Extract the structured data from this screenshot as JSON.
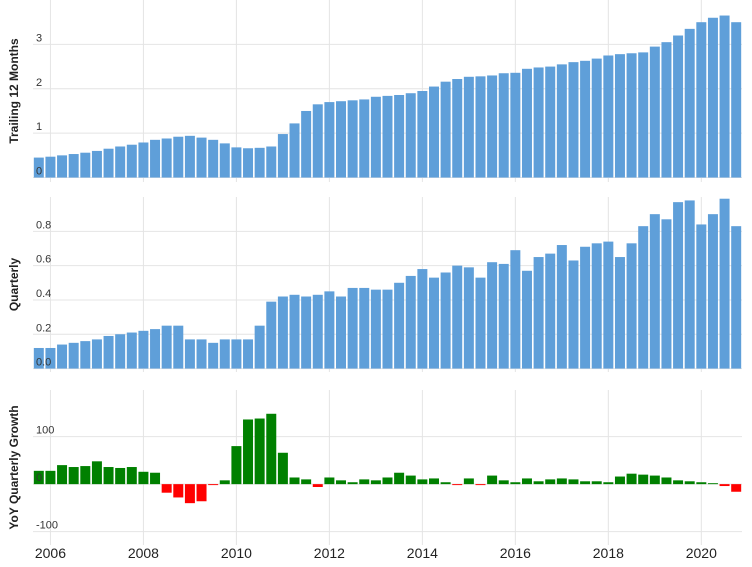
{
  "chart_data": [
    {
      "type": "bar",
      "ylabel": "Trailing 12 Months",
      "color": "#5f9fd9",
      "x": [
        2005.75,
        2006,
        2006.25,
        2006.5,
        2006.75,
        2007,
        2007.25,
        2007.5,
        2007.75,
        2008,
        2008.25,
        2008.5,
        2008.75,
        2009,
        2009.25,
        2009.5,
        2009.75,
        2010,
        2010.25,
        2010.5,
        2010.75,
        2011,
        2011.25,
        2011.5,
        2011.75,
        2012,
        2012.25,
        2012.5,
        2012.75,
        2013,
        2013.25,
        2013.5,
        2013.75,
        2014,
        2014.25,
        2014.5,
        2014.75,
        2015,
        2015.25,
        2015.5,
        2015.75,
        2016,
        2016.25,
        2016.5,
        2016.75,
        2017,
        2017.25,
        2017.5,
        2017.75,
        2018,
        2018.25,
        2018.5,
        2018.75,
        2019,
        2019.25,
        2019.5,
        2019.75,
        2020,
        2020.25,
        2020.5,
        2020.75
      ],
      "values": [
        0.45,
        0.47,
        0.5,
        0.53,
        0.56,
        0.6,
        0.65,
        0.7,
        0.74,
        0.79,
        0.85,
        0.88,
        0.92,
        0.94,
        0.9,
        0.85,
        0.77,
        0.68,
        0.66,
        0.67,
        0.7,
        0.98,
        1.22,
        1.5,
        1.65,
        1.7,
        1.72,
        1.74,
        1.76,
        1.82,
        1.84,
        1.86,
        1.9,
        1.95,
        2.05,
        2.16,
        2.22,
        2.27,
        2.28,
        2.3,
        2.35,
        2.36,
        2.45,
        2.48,
        2.5,
        2.55,
        2.6,
        2.63,
        2.68,
        2.75,
        2.78,
        2.8,
        2.82,
        2.95,
        3.05,
        3.2,
        3.35,
        3.5,
        3.6,
        3.65,
        3.5
      ],
      "xlim": [
        2005.625,
        2020.875
      ],
      "ylim": [
        -0.1,
        4.0
      ],
      "yticks": [
        0,
        1,
        2,
        3
      ],
      "grid": true
    },
    {
      "type": "bar",
      "ylabel": "Quarterly",
      "color": "#5f9fd9",
      "x": [
        2005.75,
        2006,
        2006.25,
        2006.5,
        2006.75,
        2007,
        2007.25,
        2007.5,
        2007.75,
        2008,
        2008.25,
        2008.5,
        2008.75,
        2009,
        2009.25,
        2009.5,
        2009.75,
        2010,
        2010.25,
        2010.5,
        2010.75,
        2011,
        2011.25,
        2011.5,
        2011.75,
        2012,
        2012.25,
        2012.5,
        2012.75,
        2013,
        2013.25,
        2013.5,
        2013.75,
        2014,
        2014.25,
        2014.5,
        2014.75,
        2015,
        2015.25,
        2015.5,
        2015.75,
        2016,
        2016.25,
        2016.5,
        2016.75,
        2017,
        2017.25,
        2017.5,
        2017.75,
        2018,
        2018.25,
        2018.5,
        2018.75,
        2019,
        2019.25,
        2019.5,
        2019.75,
        2020,
        2020.25,
        2020.5,
        2020.75
      ],
      "values": [
        0.12,
        0.12,
        0.14,
        0.15,
        0.16,
        0.17,
        0.19,
        0.2,
        0.21,
        0.22,
        0.23,
        0.25,
        0.25,
        0.17,
        0.17,
        0.15,
        0.17,
        0.17,
        0.17,
        0.25,
        0.39,
        0.42,
        0.43,
        0.42,
        0.43,
        0.45,
        0.42,
        0.47,
        0.47,
        0.46,
        0.46,
        0.5,
        0.54,
        0.58,
        0.53,
        0.56,
        0.6,
        0.59,
        0.53,
        0.62,
        0.61,
        0.69,
        0.57,
        0.65,
        0.67,
        0.72,
        0.63,
        0.71,
        0.73,
        0.74,
        0.65,
        0.73,
        0.83,
        0.9,
        0.87,
        0.97,
        0.98,
        0.84,
        0.9,
        0.99,
        0.83
      ],
      "xlim": [
        2005.625,
        2020.875
      ],
      "ylim": [
        -0.02,
        1.0
      ],
      "yticks": [
        {
          "value": 0,
          "label": "0.0"
        },
        0.2,
        0.4,
        0.6,
        0.8
      ],
      "grid": true
    },
    {
      "type": "bar",
      "ylabel": "YoY Quarterly Growth",
      "color": "#008000",
      "negative_color": "#ff0000",
      "x": [
        2005.75,
        2006,
        2006.25,
        2006.5,
        2006.75,
        2007,
        2007.25,
        2007.5,
        2007.75,
        2008,
        2008.25,
        2008.5,
        2008.75,
        2009,
        2009.25,
        2009.5,
        2009.75,
        2010,
        2010.25,
        2010.5,
        2010.75,
        2011,
        2011.25,
        2011.5,
        2011.75,
        2012,
        2012.25,
        2012.5,
        2012.75,
        2013,
        2013.25,
        2013.5,
        2013.75,
        2014,
        2014.25,
        2014.5,
        2014.75,
        2015,
        2015.25,
        2015.5,
        2015.75,
        2016,
        2016.25,
        2016.5,
        2016.75,
        2017,
        2017.25,
        2017.5,
        2017.75,
        2018,
        2018.25,
        2018.5,
        2018.75,
        2019,
        2019.25,
        2019.5,
        2019.75,
        2020,
        2020.25,
        2020.5,
        2020.75
      ],
      "values": [
        28,
        28,
        40,
        36,
        38,
        48,
        36,
        34,
        36,
        26,
        24,
        -18,
        -28,
        -40,
        -36,
        -2,
        8,
        80,
        136,
        138,
        148,
        66,
        14,
        10,
        -6,
        14,
        8,
        4,
        10,
        8,
        14,
        24,
        18,
        10,
        12,
        4,
        -2,
        12,
        -2,
        18,
        8,
        4,
        12,
        6,
        10,
        12,
        10,
        6,
        6,
        4,
        16,
        22,
        20,
        18,
        14,
        8,
        6,
        4,
        2,
        -4,
        -16
      ],
      "xlim": [
        2005.625,
        2020.875
      ],
      "ylim": [
        -128,
        198
      ],
      "yticks": [
        -100,
        0,
        100
      ],
      "xticks": [
        2006,
        2008,
        2010,
        2012,
        2014,
        2016,
        2018,
        2020
      ],
      "grid": true
    }
  ]
}
